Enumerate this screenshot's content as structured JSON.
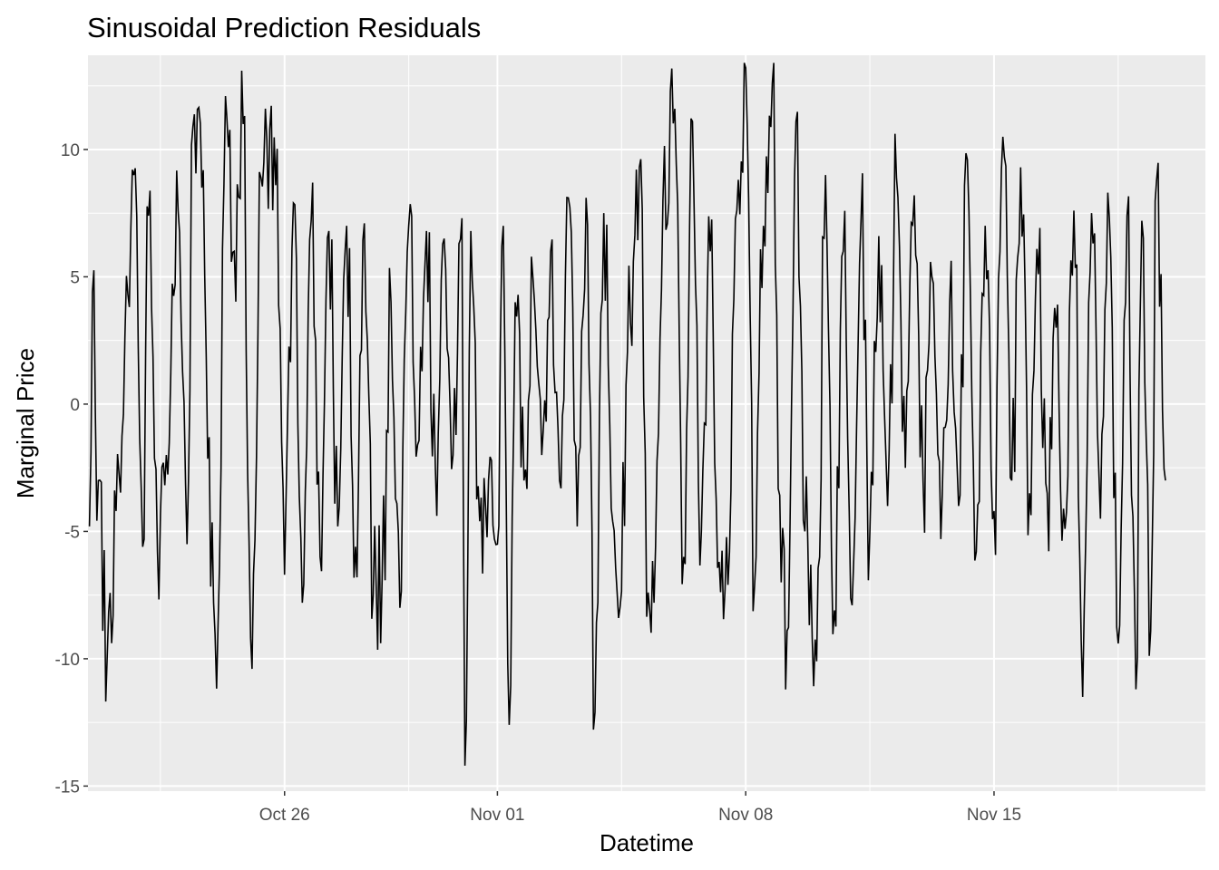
{
  "chart_data": {
    "type": "line",
    "title": "Sinusoidal Prediction Residuals",
    "xlabel": "Datetime",
    "ylabel": "Marginal Price",
    "x_range": [
      "2020-10-20T11:00",
      "2020-11-20T23:00"
    ],
    "x_major_ticks": [
      {
        "date": "2020-10-26",
        "label": "Oct 26"
      },
      {
        "date": "2020-11-01",
        "label": "Nov 01"
      },
      {
        "date": "2020-11-08",
        "label": "Nov 08"
      },
      {
        "date": "2020-11-15",
        "label": "Nov 15"
      }
    ],
    "x_minor_ticks": [
      "2020-10-22T12:00",
      "2020-10-29T12:00",
      "2020-11-04T12:00",
      "2020-11-11T12:00",
      "2020-11-18T12:00"
    ],
    "ylim": [
      -15.2,
      13.7
    ],
    "y_major_ticks": [
      {
        "value": -15,
        "label": "-15"
      },
      {
        "value": -10,
        "label": "-10"
      },
      {
        "value": -5,
        "label": "-5"
      },
      {
        "value": 0,
        "label": "0"
      },
      {
        "value": 5,
        "label": "5"
      },
      {
        "value": 10,
        "label": "10"
      }
    ],
    "y_minor_ticks": [
      -12.5,
      -7.5,
      -2.5,
      2.5,
      7.5,
      12.5
    ],
    "grid": true,
    "sampling": "hourly",
    "series": [
      {
        "anchors": [
          [
            "2020-10-20T12:00",
            -4.8
          ],
          [
            "2020-10-20T14:00",
            4.4
          ],
          [
            "2020-10-20T18:00",
            -3.0
          ],
          [
            "2020-10-21T00:00",
            -9.9
          ],
          [
            "2020-10-21T06:00",
            -4.2
          ],
          [
            "2020-10-21T12:00",
            2.6
          ],
          [
            "2020-10-21T18:00",
            9.0
          ],
          [
            "2020-10-22T00:00",
            -5.6
          ],
          [
            "2020-10-22T04:00",
            7.4
          ],
          [
            "2020-10-22T10:00",
            -5.8
          ],
          [
            "2020-10-22T16:00",
            -2.0
          ],
          [
            "2020-10-23T00:00",
            7.6
          ],
          [
            "2020-10-23T06:00",
            -5.5
          ],
          [
            "2020-10-23T10:00",
            10.9
          ],
          [
            "2020-10-23T16:00",
            8.5
          ],
          [
            "2020-10-24T00:00",
            -7.8
          ],
          [
            "2020-10-24T03:00",
            -8.7
          ],
          [
            "2020-10-24T08:00",
            12.1
          ],
          [
            "2020-10-24T14:00",
            6.0
          ],
          [
            "2020-10-24T20:00",
            11.0
          ],
          [
            "2020-10-25T00:00",
            -5.4
          ],
          [
            "2020-10-25T02:00",
            -10.4
          ],
          [
            "2020-10-25T08:00",
            8.9
          ],
          [
            "2020-10-25T12:00",
            10.4
          ],
          [
            "2020-10-25T18:00",
            8.6
          ],
          [
            "2020-10-26T00:00",
            -6.7
          ],
          [
            "2020-10-26T06:00",
            7.9
          ],
          [
            "2020-10-26T12:00",
            -7.8
          ],
          [
            "2020-10-26T18:00",
            7.2
          ],
          [
            "2020-10-27T00:00",
            -6.0
          ],
          [
            "2020-10-27T06:00",
            6.8
          ],
          [
            "2020-10-27T12:00",
            -4.8
          ],
          [
            "2020-10-27T18:00",
            7.0
          ],
          [
            "2020-10-28T00:00",
            -5.6
          ],
          [
            "2020-10-28T06:00",
            7.1
          ],
          [
            "2020-10-28T12:00",
            -7.5
          ],
          [
            "2020-10-28T18:00",
            -6.9
          ],
          [
            "2020-10-29T00:00",
            4.0
          ],
          [
            "2020-10-29T06:00",
            -8.0
          ],
          [
            "2020-10-29T12:00",
            7.0
          ],
          [
            "2020-10-29T18:00",
            -1.6
          ],
          [
            "2020-10-30T00:00",
            6.8
          ],
          [
            "2020-10-30T06:00",
            -2.5
          ],
          [
            "2020-10-30T12:00",
            6.5
          ],
          [
            "2020-10-30T18:00",
            -2.0
          ],
          [
            "2020-10-31T00:00",
            7.3
          ],
          [
            "2020-10-31T02:00",
            -14.2
          ],
          [
            "2020-10-31T06:00",
            6.8
          ],
          [
            "2020-10-31T12:00",
            -4.6
          ],
          [
            "2020-10-31T18:00",
            -3.0
          ],
          [
            "2020-11-01T00:00",
            -5.5
          ],
          [
            "2020-11-01T04:00",
            7.0
          ],
          [
            "2020-11-01T08:00",
            -12.6
          ],
          [
            "2020-11-01T12:00",
            4.0
          ],
          [
            "2020-11-01T18:00",
            -3.0
          ],
          [
            "2020-11-02T00:00",
            5.0
          ],
          [
            "2020-11-02T06:00",
            -2.0
          ],
          [
            "2020-11-02T12:00",
            6.0
          ],
          [
            "2020-11-02T18:00",
            -3.0
          ],
          [
            "2020-11-03T00:00",
            8.1
          ],
          [
            "2020-11-03T06:00",
            -4.8
          ],
          [
            "2020-11-03T12:00",
            8.1
          ],
          [
            "2020-11-03T18:00",
            -12.1
          ],
          [
            "2020-11-04T00:00",
            7.5
          ],
          [
            "2020-11-04T06:00",
            -4.6
          ],
          [
            "2020-11-04T10:00",
            -8.4
          ],
          [
            "2020-11-04T18:00",
            3.2
          ],
          [
            "2020-11-05T00:00",
            9.3
          ],
          [
            "2020-11-05T06:00",
            -7.4
          ],
          [
            "2020-11-05T10:00",
            -7.8
          ],
          [
            "2020-11-05T16:00",
            8.0
          ],
          [
            "2020-11-06T00:00",
            11.6
          ],
          [
            "2020-11-06T06:00",
            -6.0
          ],
          [
            "2020-11-06T12:00",
            11.1
          ],
          [
            "2020-11-06T18:00",
            -5.0
          ],
          [
            "2020-11-07T00:00",
            6.0
          ],
          [
            "2020-11-07T06:00",
            -6.2
          ],
          [
            "2020-11-07T12:00",
            -7.1
          ],
          [
            "2020-11-07T18:00",
            7.6
          ],
          [
            "2020-11-08T00:00",
            13.2
          ],
          [
            "2020-11-08T06:00",
            -7.1
          ],
          [
            "2020-11-08T12:00",
            7.0
          ],
          [
            "2020-11-08T18:00",
            12.6
          ],
          [
            "2020-11-09T00:00",
            -7.0
          ],
          [
            "2020-11-09T04:00",
            -8.9
          ],
          [
            "2020-11-09T10:00",
            11.1
          ],
          [
            "2020-11-09T16:00",
            -5.0
          ],
          [
            "2020-11-10T00:00",
            -10.1
          ],
          [
            "2020-11-10T06:00",
            9.0
          ],
          [
            "2020-11-10T12:00",
            -8.1
          ],
          [
            "2020-11-10T18:00",
            6.0
          ],
          [
            "2020-11-11T00:00",
            -7.9
          ],
          [
            "2020-11-11T06:00",
            7.2
          ],
          [
            "2020-11-11T12:00",
            -5.0
          ],
          [
            "2020-11-11T18:00",
            6.6
          ],
          [
            "2020-11-12T00:00",
            -4.0
          ],
          [
            "2020-11-12T06:00",
            8.9
          ],
          [
            "2020-11-12T12:00",
            -2.5
          ],
          [
            "2020-11-12T18:00",
            8.2
          ],
          [
            "2020-11-13T00:00",
            -3.0
          ],
          [
            "2020-11-13T06:00",
            5.0
          ],
          [
            "2020-11-13T12:00",
            -5.3
          ],
          [
            "2020-11-13T18:00",
            4.0
          ],
          [
            "2020-11-14T00:00",
            -4.0
          ],
          [
            "2020-11-14T06:00",
            9.6
          ],
          [
            "2020-11-14T12:00",
            -5.8
          ],
          [
            "2020-11-14T18:00",
            7.0
          ],
          [
            "2020-11-15T00:00",
            -4.2
          ],
          [
            "2020-11-15T06:00",
            10.5
          ],
          [
            "2020-11-15T12:00",
            -3.0
          ],
          [
            "2020-11-15T18:00",
            9.3
          ],
          [
            "2020-11-16T00:00",
            -3.5
          ],
          [
            "2020-11-16T06:00",
            5.1
          ],
          [
            "2020-11-16T12:00",
            -3.5
          ],
          [
            "2020-11-16T18:00",
            3.0
          ],
          [
            "2020-11-17T00:00",
            -4.9
          ],
          [
            "2020-11-17T06:00",
            7.6
          ],
          [
            "2020-11-17T12:00",
            -11.5
          ],
          [
            "2020-11-17T18:00",
            7.5
          ],
          [
            "2020-11-18T00:00",
            -4.5
          ],
          [
            "2020-11-18T06:00",
            7.3
          ],
          [
            "2020-11-18T12:00",
            -9.4
          ],
          [
            "2020-11-18T18:00",
            7.4
          ],
          [
            "2020-11-19T00:00",
            -11.2
          ],
          [
            "2020-11-19T04:00",
            7.2
          ],
          [
            "2020-11-19T10:00",
            -8.9
          ],
          [
            "2020-11-19T14:00",
            8.8
          ],
          [
            "2020-11-19T20:00",
            -3.0
          ]
        ]
      }
    ]
  }
}
